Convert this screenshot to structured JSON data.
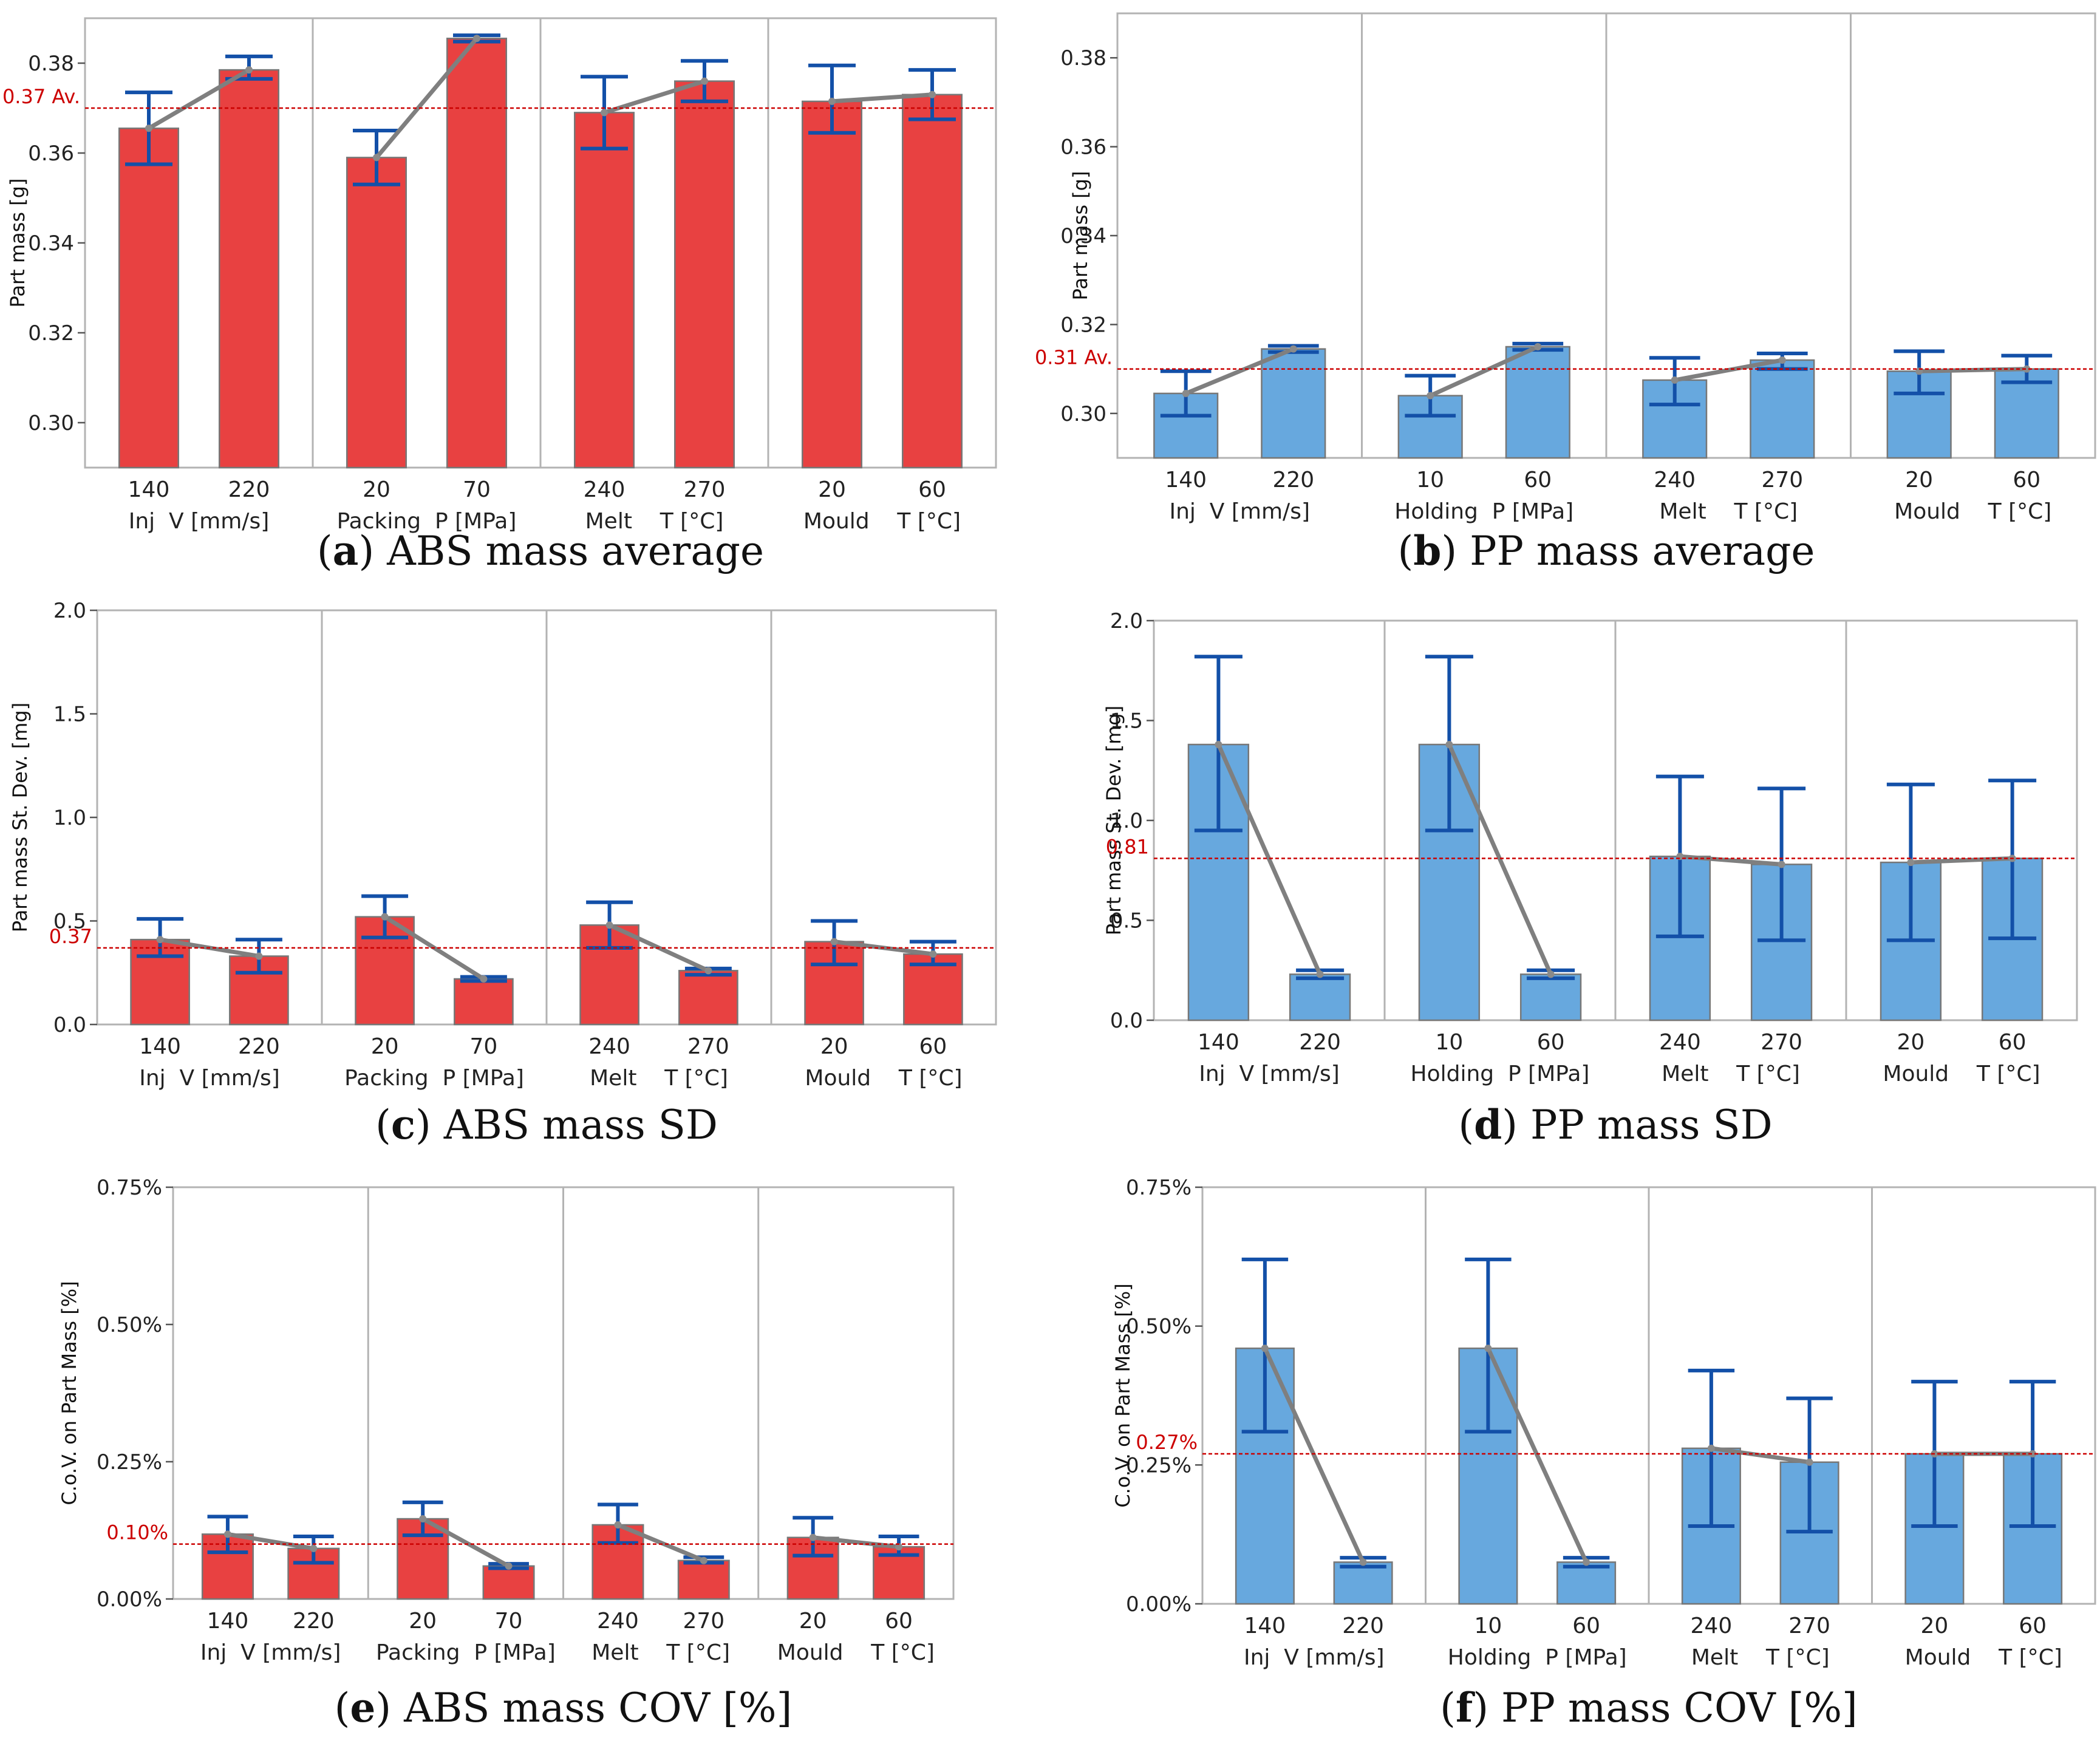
{
  "figure": {
    "bar_colors": {
      "abs": "#e84141",
      "pp": "#67a8de"
    },
    "bar_stroke": "#777777",
    "error_bar_color": "#1350a8",
    "mean_line_color": "#7f7f7f",
    "ref_line_color": "#cc0000",
    "frame_color": "#b3b3b3"
  },
  "chart_data": [
    {
      "id": "a",
      "type": "bar",
      "material": "abs",
      "caption_letter": "a",
      "caption_rest": "ABS mass average",
      "ylabel": "Part mass [g]",
      "ylim": [
        0.29,
        0.39
      ],
      "yticks": [
        0.3,
        0.32,
        0.34,
        0.36,
        0.38
      ],
      "ytick_labels": [
        "0.30",
        "0.32",
        "0.34",
        "0.36",
        "0.38"
      ],
      "reference": {
        "value": 0.37,
        "label": "0.37 Av."
      },
      "groups": [
        {
          "factor": "Inj  V [mm/s]",
          "levels": [
            "140",
            "220"
          ],
          "values": [
            0.3655,
            0.3785
          ],
          "err_low": [
            0.3575,
            0.3765
          ],
          "err_high": [
            0.3735,
            0.3815
          ]
        },
        {
          "factor": "Packing  P [MPa]",
          "levels": [
            "20",
            "70"
          ],
          "values": [
            0.359,
            0.3855
          ],
          "err_low": [
            0.353,
            0.3848
          ],
          "err_high": [
            0.365,
            0.3862
          ]
        },
        {
          "factor": "Melt    T [°C]",
          "levels": [
            "240",
            "270"
          ],
          "values": [
            0.369,
            0.376
          ],
          "err_low": [
            0.361,
            0.3715
          ],
          "err_high": [
            0.377,
            0.3805
          ]
        },
        {
          "factor": "Mould    T [°C]",
          "levels": [
            "20",
            "60"
          ],
          "values": [
            0.3715,
            0.373
          ],
          "err_low": [
            0.3645,
            0.3675
          ],
          "err_high": [
            0.3795,
            0.3785
          ]
        }
      ]
    },
    {
      "id": "b",
      "type": "bar",
      "material": "pp",
      "caption_letter": "b",
      "caption_rest": "PP mass average",
      "ylabel": "Part mass [g]",
      "ylim": [
        0.29,
        0.39
      ],
      "yticks": [
        0.3,
        0.32,
        0.34,
        0.36,
        0.38
      ],
      "ytick_labels": [
        "0.30",
        "0.32",
        "0.34",
        "0.36",
        "0.38"
      ],
      "reference": {
        "value": 0.31,
        "label": "0.31 Av."
      },
      "groups": [
        {
          "factor": "Inj  V [mm/s]",
          "levels": [
            "140",
            "220"
          ],
          "values": [
            0.3045,
            0.3145
          ],
          "err_low": [
            0.2995,
            0.3138
          ],
          "err_high": [
            0.3095,
            0.3152
          ]
        },
        {
          "factor": "Holding  P [MPa]",
          "levels": [
            "10",
            "60"
          ],
          "values": [
            0.304,
            0.315
          ],
          "err_low": [
            0.2995,
            0.3143
          ],
          "err_high": [
            0.3085,
            0.3157
          ]
        },
        {
          "factor": "Melt    T [°C]",
          "levels": [
            "240",
            "270"
          ],
          "values": [
            0.3075,
            0.312
          ],
          "err_low": [
            0.302,
            0.31
          ],
          "err_high": [
            0.3125,
            0.3135
          ]
        },
        {
          "factor": "Mould    T [°C]",
          "levels": [
            "20",
            "60"
          ],
          "values": [
            0.3095,
            0.31
          ],
          "err_low": [
            0.3045,
            0.307
          ],
          "err_high": [
            0.314,
            0.313
          ]
        }
      ]
    },
    {
      "id": "c",
      "type": "bar",
      "material": "abs",
      "caption_letter": "c",
      "caption_rest": "ABS mass SD",
      "ylabel": "Part mass St. Dev. [mg]",
      "ylim": [
        0,
        2.0
      ],
      "yticks": [
        0,
        0.5,
        1.0,
        1.5,
        2.0
      ],
      "ytick_labels": [
        "0.0",
        "0.5",
        "1.0",
        "1.5",
        "2.0"
      ],
      "reference": {
        "value": 0.37,
        "label": "0.37"
      },
      "groups": [
        {
          "factor": "Inj  V [mm/s]",
          "levels": [
            "140",
            "220"
          ],
          "values": [
            0.41,
            0.33
          ],
          "err_low": [
            0.33,
            0.25
          ],
          "err_high": [
            0.51,
            0.41
          ]
        },
        {
          "factor": "Packing  P [MPa]",
          "levels": [
            "20",
            "70"
          ],
          "values": [
            0.52,
            0.22
          ],
          "err_low": [
            0.42,
            0.21
          ],
          "err_high": [
            0.62,
            0.23
          ]
        },
        {
          "factor": "Melt    T [°C]",
          "levels": [
            "240",
            "270"
          ],
          "values": [
            0.48,
            0.26
          ],
          "err_low": [
            0.37,
            0.24
          ],
          "err_high": [
            0.59,
            0.27
          ]
        },
        {
          "factor": "Mould    T [°C]",
          "levels": [
            "20",
            "60"
          ],
          "values": [
            0.4,
            0.34
          ],
          "err_low": [
            0.29,
            0.29
          ],
          "err_high": [
            0.5,
            0.4
          ]
        }
      ]
    },
    {
      "id": "d",
      "type": "bar",
      "material": "pp",
      "caption_letter": "d",
      "caption_rest": "PP mass SD",
      "ylabel": "Part mass St. Dev. [mg]",
      "ylim": [
        0,
        2.0
      ],
      "yticks": [
        0,
        0.5,
        1.0,
        1.5,
        2.0
      ],
      "ytick_labels": [
        "0.0",
        "0.5",
        "1.0",
        "1.5",
        "2.0"
      ],
      "reference": {
        "value": 0.81,
        "label": "0.81"
      },
      "groups": [
        {
          "factor": "Inj  V [mm/s]",
          "levels": [
            "140",
            "220"
          ],
          "values": [
            1.38,
            0.23
          ],
          "err_low": [
            0.95,
            0.21
          ],
          "err_high": [
            1.82,
            0.25
          ]
        },
        {
          "factor": "Holding  P [MPa]",
          "levels": [
            "10",
            "60"
          ],
          "values": [
            1.38,
            0.23
          ],
          "err_low": [
            0.95,
            0.21
          ],
          "err_high": [
            1.82,
            0.25
          ]
        },
        {
          "factor": "Melt    T [°C]",
          "levels": [
            "240",
            "270"
          ],
          "values": [
            0.82,
            0.78
          ],
          "err_low": [
            0.42,
            0.4
          ],
          "err_high": [
            1.22,
            1.16
          ]
        },
        {
          "factor": "Mould    T [°C]",
          "levels": [
            "20",
            "60"
          ],
          "values": [
            0.79,
            0.81
          ],
          "err_low": [
            0.4,
            0.41
          ],
          "err_high": [
            1.18,
            1.2
          ]
        }
      ]
    },
    {
      "id": "e",
      "type": "bar",
      "material": "abs",
      "caption_letter": "e",
      "caption_rest": "ABS mass COV [%]",
      "ylabel": "C.o.V. on Part Mass [%]",
      "ylim": [
        0,
        0.75
      ],
      "yticks": [
        0,
        0.25,
        0.5,
        0.75
      ],
      "ytick_labels": [
        "0.00%",
        "0.25%",
        "0.50%",
        "0.75%"
      ],
      "reference": {
        "value": 0.1,
        "label": "0.10%"
      },
      "groups": [
        {
          "factor": "Inj  V [mm/s]",
          "levels": [
            "140",
            "220"
          ],
          "values": [
            0.118,
            0.092
          ],
          "err_low": [
            0.085,
            0.066
          ],
          "err_high": [
            0.15,
            0.114
          ]
        },
        {
          "factor": "Packing  P [MPa]",
          "levels": [
            "20",
            "70"
          ],
          "values": [
            0.146,
            0.06
          ],
          "err_low": [
            0.116,
            0.056
          ],
          "err_high": [
            0.176,
            0.064
          ]
        },
        {
          "factor": "Melt    T [°C]",
          "levels": [
            "240",
            "270"
          ],
          "values": [
            0.135,
            0.07
          ],
          "err_low": [
            0.102,
            0.066
          ],
          "err_high": [
            0.172,
            0.076
          ]
        },
        {
          "factor": "Mould    T [°C]",
          "levels": [
            "20",
            "60"
          ],
          "values": [
            0.112,
            0.095
          ],
          "err_low": [
            0.079,
            0.08
          ],
          "err_high": [
            0.148,
            0.114
          ]
        }
      ]
    },
    {
      "id": "f",
      "type": "bar",
      "material": "pp",
      "caption_letter": "f",
      "caption_rest": "PP mass COV [%]",
      "ylabel": "C.o.V. on Part Mass [%]",
      "ylim": [
        0,
        0.75
      ],
      "yticks": [
        0,
        0.25,
        0.5,
        0.75
      ],
      "ytick_labels": [
        "0.00%",
        "0.25%",
        "0.50%",
        "0.75%"
      ],
      "reference": {
        "value": 0.27,
        "label": "0.27%"
      },
      "groups": [
        {
          "factor": "Inj  V [mm/s]",
          "levels": [
            "140",
            "220"
          ],
          "values": [
            0.46,
            0.075
          ],
          "err_low": [
            0.31,
            0.067
          ],
          "err_high": [
            0.62,
            0.083
          ]
        },
        {
          "factor": "Holding  P [MPa]",
          "levels": [
            "10",
            "60"
          ],
          "values": [
            0.46,
            0.075
          ],
          "err_low": [
            0.31,
            0.067
          ],
          "err_high": [
            0.62,
            0.083
          ]
        },
        {
          "factor": "Melt    T [°C]",
          "levels": [
            "240",
            "270"
          ],
          "values": [
            0.28,
            0.255
          ],
          "err_low": [
            0.14,
            0.13
          ],
          "err_high": [
            0.42,
            0.37
          ]
        },
        {
          "factor": "Mould    T [°C]",
          "levels": [
            "20",
            "60"
          ],
          "values": [
            0.27,
            0.27
          ],
          "err_low": [
            0.14,
            0.14
          ],
          "err_high": [
            0.4,
            0.4
          ]
        }
      ]
    }
  ]
}
